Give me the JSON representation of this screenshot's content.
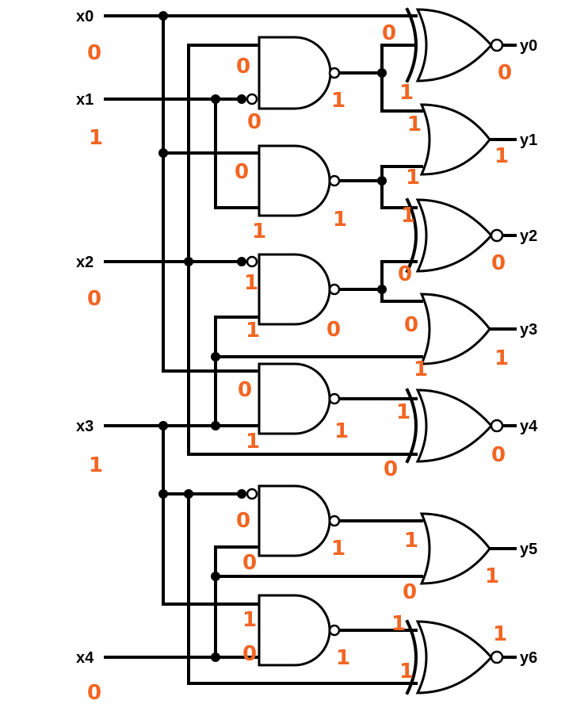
{
  "inputs": [
    {
      "name": "x0",
      "value": "0"
    },
    {
      "name": "x1",
      "value": "1"
    },
    {
      "name": "x2",
      "value": "0"
    },
    {
      "name": "x3",
      "value": "1"
    },
    {
      "name": "x4",
      "value": "0"
    }
  ],
  "outputs": [
    {
      "name": "y0",
      "value": "0"
    },
    {
      "name": "y1",
      "value": "1"
    },
    {
      "name": "y2",
      "value": "0"
    },
    {
      "name": "y3",
      "value": "1"
    },
    {
      "name": "y4",
      "value": "0"
    },
    {
      "name": "y5",
      "value": "1"
    },
    {
      "name": "y6",
      "value": "1"
    }
  ],
  "annotations": {
    "nand1_in_top": "0",
    "nand1_in_bot": "0",
    "nand1_out": "1",
    "nand2_in_top": "0",
    "nand2_in_bot": "1",
    "nand2_out": "1",
    "nand3_in_top": "1",
    "nand3_in_bot": "1",
    "nand3_out": "0",
    "nand4_in_top": "0",
    "nand4_in_bot": "1",
    "nand4_out": "1",
    "nand5_in_top": "0",
    "nand5_in_bot": "0",
    "nand5_out": "1",
    "nand6_in_top": "1",
    "nand6_in_bot": "0",
    "nand6_out": "1",
    "xnor0_in_top": "0",
    "xnor0_in_bot": "1",
    "or1_in_top": "1",
    "or1_in_bot": "1",
    "xnor2_in_top": "1",
    "xnor2_in_bot": "0",
    "or3_in_top": "0",
    "or3_in_bot": "1",
    "xnor4_in_top": "1",
    "xnor4_in_bot": "0",
    "or5_in_top": "1",
    "or5_in_bot": "0",
    "xnor6_in_top": "1",
    "xnor6_in_bot": "1"
  }
}
